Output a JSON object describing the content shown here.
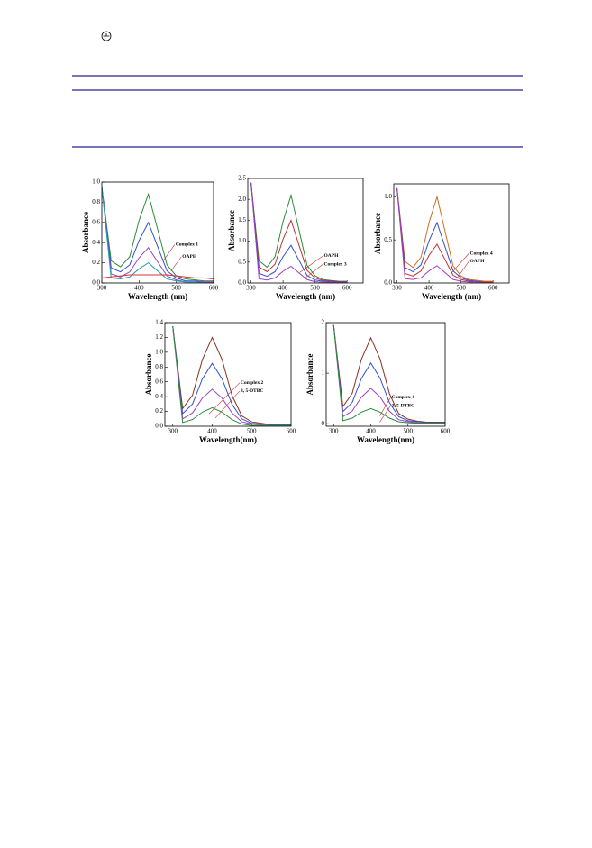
{
  "chart_data": [
    {
      "type": "line",
      "x": [
        300,
        325,
        350,
        375,
        400,
        425,
        450,
        475,
        500,
        525,
        550,
        575,
        600
      ],
      "xlabel": "Wavelength (nm)",
      "ylabel": "Absorbance",
      "xlim": [
        300,
        600
      ],
      "xticks": [
        300,
        400,
        500,
        600
      ],
      "ylim": [
        0,
        1
      ],
      "yticks": [
        {
          "value": 0,
          "label": "0.0"
        },
        {
          "value": 0.2,
          "label": "0.2"
        },
        {
          "value": 0.4,
          "label": "0.4"
        },
        {
          "value": 0.6,
          "label": "0.6"
        },
        {
          "value": 0.8,
          "label": "0.8"
        },
        {
          "value": 1,
          "label": "1.0"
        }
      ],
      "annotations": [
        "Complex 1",
        "OAPH"
      ],
      "series": [
        {
          "color": "#2e8b3a",
          "values": [
            0.95,
            0.22,
            0.16,
            0.26,
            0.62,
            0.88,
            0.53,
            0.18,
            0.07,
            0.04,
            0.03,
            0.02,
            0.02
          ]
        },
        {
          "color": "#3050d0",
          "values": [
            0.95,
            0.15,
            0.11,
            0.18,
            0.42,
            0.6,
            0.36,
            0.12,
            0.05,
            0.02,
            0.02,
            0.01,
            0.01
          ]
        },
        {
          "color": "#9a40c0",
          "values": [
            0.95,
            0.09,
            0.06,
            0.11,
            0.25,
            0.35,
            0.21,
            0.07,
            0.03,
            0.01,
            0.01,
            0.01,
            0.01
          ]
        },
        {
          "color": "#20a0b0",
          "values": [
            0.95,
            0.05,
            0.04,
            0.06,
            0.14,
            0.2,
            0.12,
            0.04,
            0.02,
            0.01,
            0.01,
            0,
            0
          ]
        },
        {
          "color": "#e03030",
          "values": [
            0.05,
            0.06,
            0.07,
            0.08,
            0.08,
            0.08,
            0.08,
            0.08,
            0.07,
            0.06,
            0.05,
            0.05,
            0.04
          ]
        }
      ]
    },
    {
      "type": "line",
      "x": [
        300,
        325,
        350,
        375,
        400,
        425,
        450,
        475,
        500,
        525,
        550,
        575,
        600
      ],
      "xlabel": "Wavelength (nm)",
      "ylabel": "Absorbance",
      "xlim": [
        290,
        650
      ],
      "xticks": [
        300,
        400,
        500,
        600
      ],
      "ylim": [
        0,
        2.5
      ],
      "yticks": [
        {
          "value": 0,
          "label": "0.0"
        },
        {
          "value": 0.5,
          "label": "0.5"
        },
        {
          "value": 1,
          "label": "1.0"
        },
        {
          "value": 1.5,
          "label": "1.5"
        },
        {
          "value": 2,
          "label": "2.0"
        },
        {
          "value": 2.5,
          "label": "2.5"
        }
      ],
      "annotations": [
        "OAPH",
        "Complex 3"
      ],
      "series": [
        {
          "color": "#2e8b3a",
          "values": [
            2.4,
            0.53,
            0.38,
            0.63,
            1.47,
            2.1,
            1.26,
            0.42,
            0.17,
            0.08,
            0.06,
            0.04,
            0.04
          ]
        },
        {
          "color": "#c03030",
          "values": [
            2.4,
            0.38,
            0.27,
            0.45,
            1.05,
            1.5,
            0.9,
            0.3,
            0.12,
            0.06,
            0.05,
            0.03,
            0.03
          ]
        },
        {
          "color": "#3050d0",
          "values": [
            2.4,
            0.23,
            0.16,
            0.27,
            0.63,
            0.9,
            0.54,
            0.18,
            0.07,
            0.04,
            0.03,
            0.02,
            0.02
          ]
        },
        {
          "color": "#9a40c0",
          "values": [
            2.4,
            0.1,
            0.07,
            0.12,
            0.28,
            0.4,
            0.24,
            0.08,
            0.03,
            0.02,
            0.01,
            0.01,
            0.01
          ]
        }
      ]
    },
    {
      "type": "line",
      "x": [
        300,
        325,
        350,
        375,
        400,
        425,
        450,
        475,
        500,
        525,
        550,
        575,
        600
      ],
      "xlabel": "Wavelength (nm)",
      "ylabel": "Absorbance",
      "xlim": [
        290,
        650
      ],
      "xticks": [
        300,
        400,
        500,
        600
      ],
      "ylim": [
        0,
        1.15
      ],
      "yticks": [
        {
          "value": 0,
          "label": "0.0"
        },
        {
          "value": 0.5,
          "label": "0.5"
        },
        {
          "value": 1,
          "label": "1.0"
        }
      ],
      "annotations": [
        "Complex 4",
        "OAPH"
      ],
      "series": [
        {
          "color": "#d07020",
          "values": [
            1.1,
            0.25,
            0.18,
            0.3,
            0.7,
            1.0,
            0.6,
            0.2,
            0.08,
            0.04,
            0.03,
            0.02,
            0.02
          ]
        },
        {
          "color": "#3050d0",
          "values": [
            1.1,
            0.18,
            0.13,
            0.21,
            0.49,
            0.7,
            0.42,
            0.14,
            0.06,
            0.03,
            0.02,
            0.01,
            0.01
          ]
        },
        {
          "color": "#c03030",
          "values": [
            1.1,
            0.11,
            0.08,
            0.14,
            0.32,
            0.45,
            0.27,
            0.09,
            0.04,
            0.02,
            0.01,
            0.01,
            0.01
          ]
        },
        {
          "color": "#9a40c0",
          "values": [
            1.1,
            0.05,
            0.04,
            0.06,
            0.14,
            0.2,
            0.12,
            0.04,
            0.02,
            0.01,
            0.01,
            0,
            0
          ]
        }
      ]
    },
    {
      "type": "line",
      "x": [
        300,
        325,
        350,
        375,
        400,
        425,
        450,
        475,
        500,
        525,
        550,
        575,
        600
      ],
      "xlabel": "Wavelength(nm)",
      "ylabel": "Absorbance",
      "xlim": [
        280,
        600
      ],
      "xticks": [
        300,
        400,
        500,
        600
      ],
      "ylim": [
        0,
        1.4
      ],
      "yticks": [
        {
          "value": 0,
          "label": "0.0"
        },
        {
          "value": 0.2,
          "label": "0.2"
        },
        {
          "value": 0.4,
          "label": "0.4"
        },
        {
          "value": 0.6,
          "label": "0.6"
        },
        {
          "value": 0.8,
          "label": "0.8"
        },
        {
          "value": 1,
          "label": "1.0"
        },
        {
          "value": 1.2,
          "label": "1.2"
        },
        {
          "value": 1.4,
          "label": "1.4"
        }
      ],
      "annotations": [
        "Complex 2",
        "3, 5-DTBC"
      ],
      "series": [
        {
          "color": "#8a3020",
          "values": [
            1.35,
            0.24,
            0.42,
            0.9,
            1.2,
            0.9,
            0.42,
            0.14,
            0.06,
            0.04,
            0.02,
            0.02,
            0.02
          ]
        },
        {
          "color": "#3050d0",
          "values": [
            1.35,
            0.17,
            0.3,
            0.64,
            0.85,
            0.64,
            0.3,
            0.1,
            0.04,
            0.03,
            0.02,
            0.02,
            0.02
          ]
        },
        {
          "color": "#9a40c0",
          "values": [
            1.35,
            0.1,
            0.18,
            0.38,
            0.5,
            0.38,
            0.18,
            0.06,
            0.03,
            0.02,
            0.01,
            0.01,
            0.01
          ]
        },
        {
          "color": "#2e8b3a",
          "values": [
            1.35,
            0.05,
            0.09,
            0.19,
            0.25,
            0.19,
            0.09,
            0.03,
            0.01,
            0.01,
            0.01,
            0.01,
            0.01
          ]
        }
      ]
    },
    {
      "type": "line",
      "x": [
        300,
        325,
        350,
        375,
        400,
        425,
        450,
        475,
        500,
        525,
        550,
        575,
        600
      ],
      "xlabel": "Wavelength(nm)",
      "ylabel": "Absorbance",
      "xlim": [
        280,
        600
      ],
      "xticks": [
        300,
        400,
        500,
        600
      ],
      "ylim": [
        -0.05,
        2
      ],
      "yticks": [
        0,
        1,
        2
      ],
      "annotations": [
        "Complex 4",
        "3, 5-DTBC"
      ],
      "series": [
        {
          "color": "#8a3020",
          "values": [
            1.95,
            0.34,
            0.6,
            1.28,
            1.7,
            1.28,
            0.6,
            0.2,
            0.09,
            0.05,
            0.03,
            0.03,
            0.03
          ]
        },
        {
          "color": "#3050d0",
          "values": [
            1.95,
            0.24,
            0.42,
            0.9,
            1.2,
            0.9,
            0.42,
            0.14,
            0.06,
            0.04,
            0.02,
            0.02,
            0.02
          ]
        },
        {
          "color": "#9a40c0",
          "values": [
            1.95,
            0.14,
            0.25,
            0.53,
            0.7,
            0.53,
            0.25,
            0.08,
            0.04,
            0.02,
            0.01,
            0.01,
            0.01
          ]
        },
        {
          "color": "#2e8b3a",
          "values": [
            1.95,
            0.06,
            0.11,
            0.23,
            0.3,
            0.23,
            0.11,
            0.04,
            0.02,
            0.01,
            0.01,
            0.01,
            0.01
          ]
        }
      ]
    }
  ]
}
